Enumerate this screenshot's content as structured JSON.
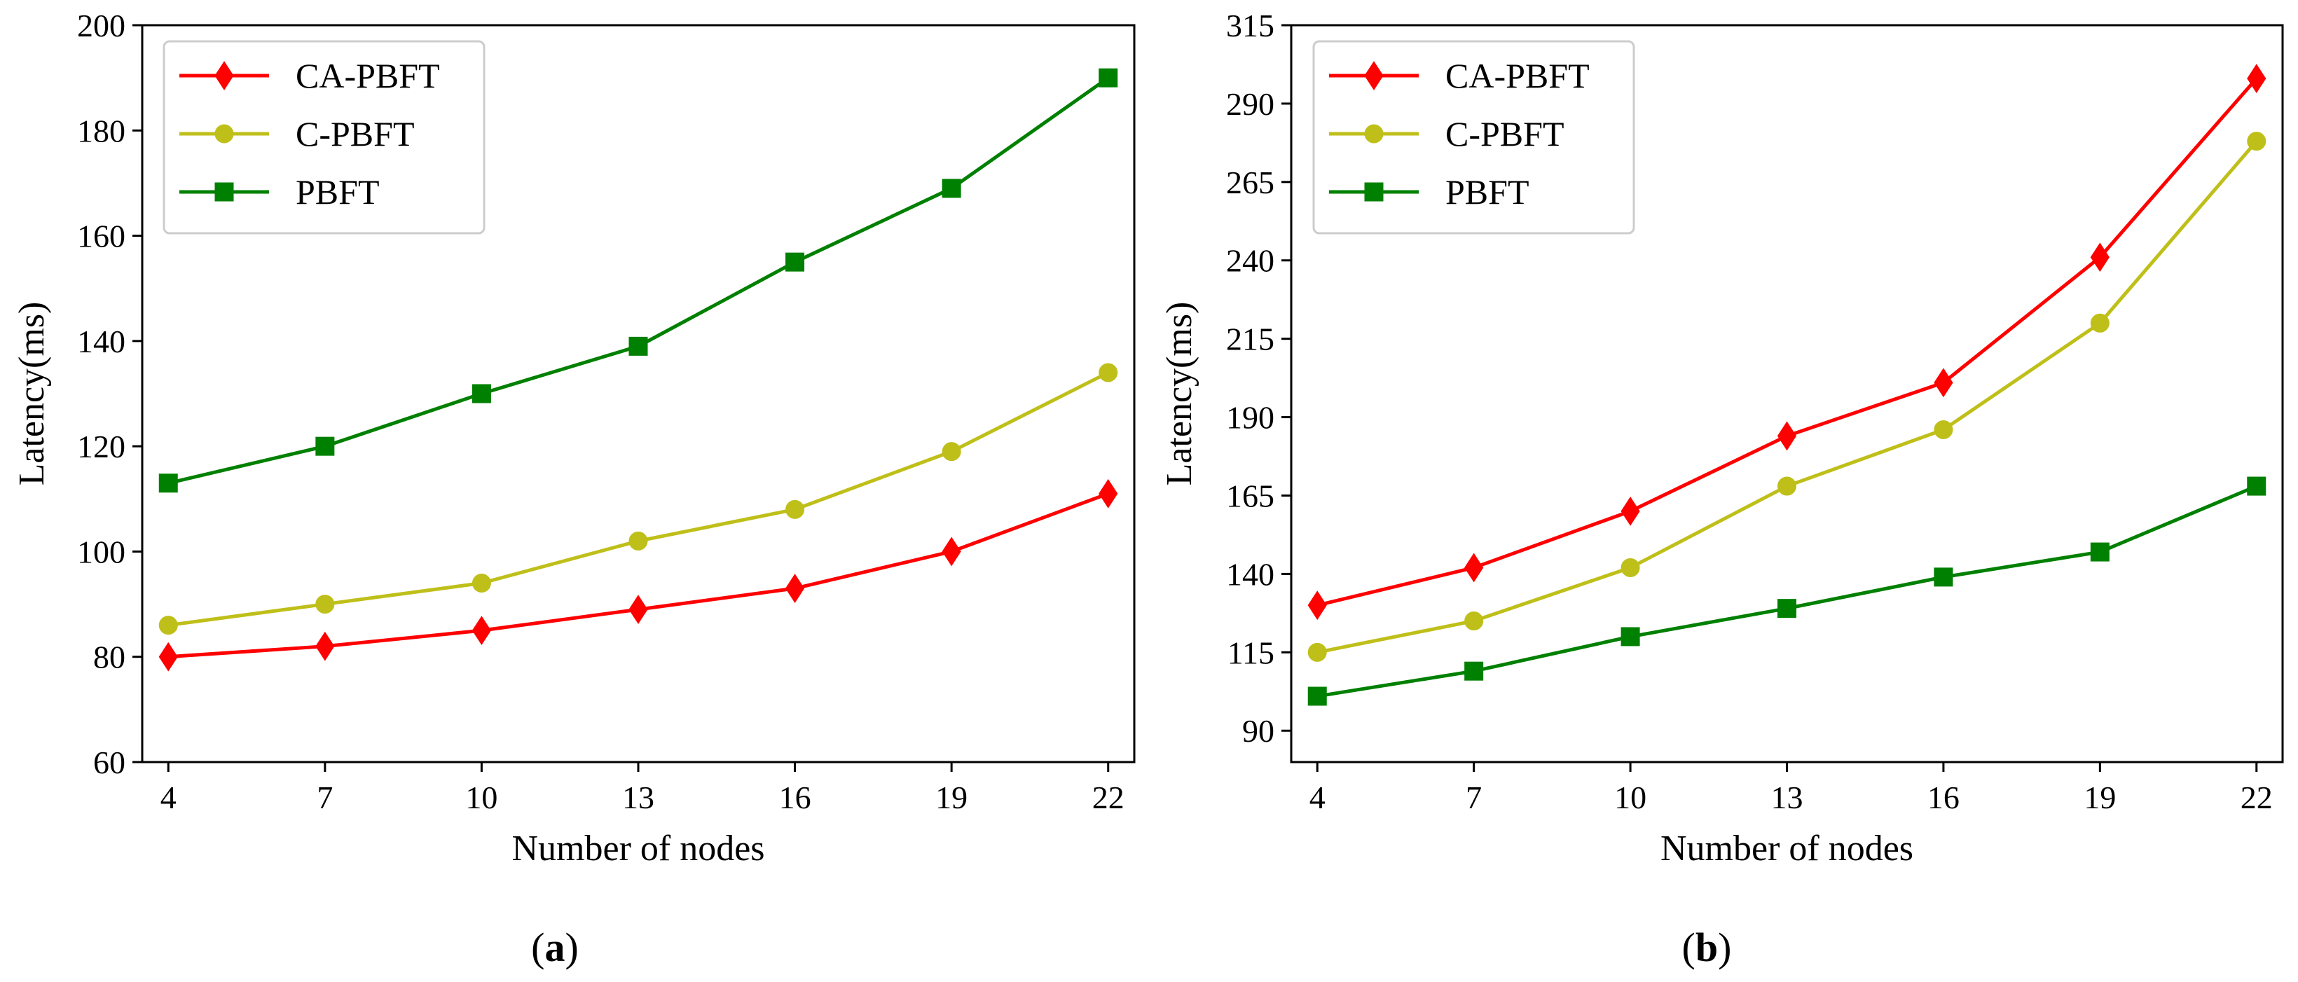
{
  "chart_data": [
    {
      "type": "line",
      "panel_label": "a",
      "xlabel": "Number of nodes",
      "ylabel": "Latency(ms)",
      "x": [
        4,
        7,
        10,
        13,
        16,
        19,
        22
      ],
      "xticks": [
        "4",
        "7",
        "10",
        "13",
        "16",
        "19",
        "22"
      ],
      "xlim": [
        3.5,
        22.5
      ],
      "ylim": [
        60,
        200
      ],
      "yticks": [
        60,
        80,
        100,
        120,
        140,
        160,
        180,
        200
      ],
      "grid": false,
      "legend_position": "top-left",
      "series": [
        {
          "name": "CA-PBFT",
          "color": "#ff0000",
          "marker": "diamond",
          "values": [
            80,
            82,
            85,
            89,
            93,
            100,
            111
          ]
        },
        {
          "name": "C-PBFT",
          "color": "#bfbf1a",
          "marker": "circle",
          "values": [
            86,
            90,
            94,
            102,
            108,
            119,
            134
          ]
        },
        {
          "name": "PBFT",
          "color": "#008000",
          "marker": "square",
          "values": [
            113,
            120,
            130,
            139,
            155,
            169,
            190
          ]
        }
      ]
    },
    {
      "type": "line",
      "panel_label": "b",
      "xlabel": "Number of nodes",
      "ylabel": "Latency(ms)",
      "x": [
        4,
        7,
        10,
        13,
        16,
        19,
        22
      ],
      "xticks": [
        "4",
        "7",
        "10",
        "13",
        "16",
        "19",
        "22"
      ],
      "xlim": [
        3.5,
        22.5
      ],
      "ylim": [
        80,
        315
      ],
      "yticks": [
        90,
        115,
        140,
        165,
        190,
        215,
        240,
        265,
        290,
        315
      ],
      "grid": false,
      "legend_position": "top-left",
      "series": [
        {
          "name": "CA-PBFT",
          "color": "#ff0000",
          "marker": "diamond",
          "values": [
            130,
            142,
            160,
            184,
            201,
            241,
            298
          ]
        },
        {
          "name": "C-PBFT",
          "color": "#bfbf1a",
          "marker": "circle",
          "values": [
            115,
            125,
            142,
            168,
            186,
            220,
            278
          ]
        },
        {
          "name": "PBFT",
          "color": "#008000",
          "marker": "square",
          "values": [
            101,
            109,
            120,
            129,
            139,
            147,
            168
          ]
        }
      ]
    }
  ]
}
